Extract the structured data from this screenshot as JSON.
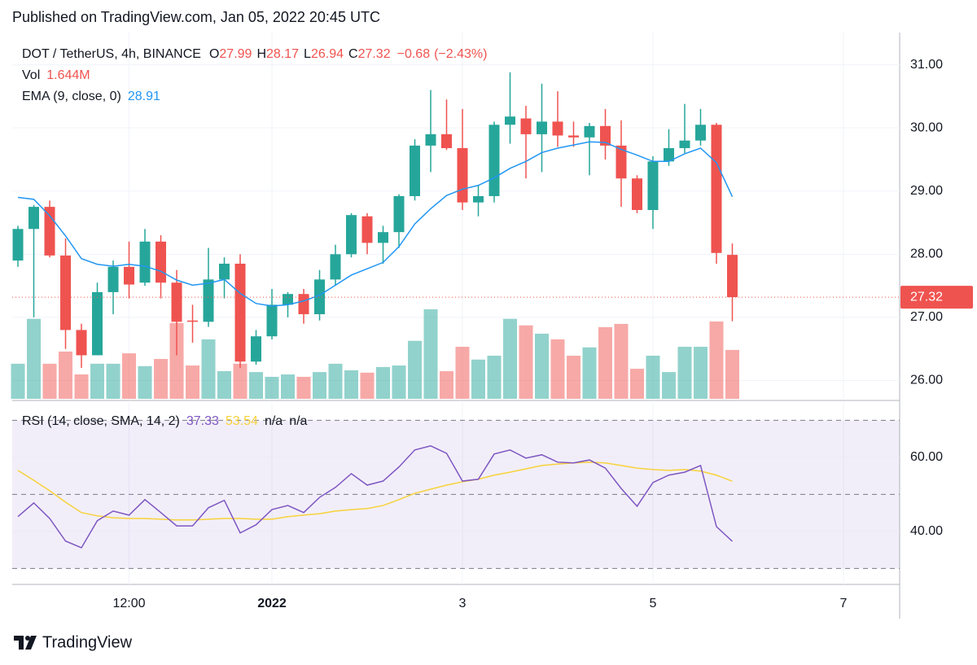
{
  "header": "Published on TradingView.com, Jan 05, 2022 20:45 UTC",
  "footer": "TradingView",
  "chart_data": [
    {
      "type": "candlestick",
      "title": "DOT / TetherUS, 4h, BINANCE",
      "ohlc_labels": [
        "O",
        "H",
        "L",
        "C"
      ],
      "change": {
        "value": -0.68,
        "label": "−0.68"
      },
      "change_pct": {
        "value": -2.43,
        "label": "(−2.43%)"
      },
      "open": [
        27.9,
        28.4,
        28.75,
        27.98,
        26.8,
        26.4,
        27.4,
        27.8,
        27.55,
        28.2,
        27.55,
        26.95,
        26.93,
        27.6,
        27.85,
        26.3,
        26.7,
        27.2,
        27.37,
        27.05,
        27.6,
        28.0,
        28.6,
        28.18,
        28.35,
        28.92,
        29.72,
        29.9,
        29.68,
        28.82,
        28.92,
        30.05,
        30.15,
        29.9,
        30.1,
        29.88,
        29.85,
        30.03,
        29.72,
        29.2,
        28.7,
        29.47,
        29.68,
        29.8,
        30.05,
        27.99
      ],
      "high": [
        28.45,
        28.78,
        28.85,
        28.25,
        26.9,
        27.55,
        27.9,
        28.2,
        28.4,
        28.3,
        27.75,
        27.2,
        28.1,
        27.95,
        28.0,
        26.8,
        27.45,
        27.4,
        27.45,
        27.75,
        28.15,
        28.65,
        28.65,
        28.45,
        28.95,
        29.82,
        30.6,
        30.45,
        30.3,
        29.1,
        30.1,
        30.88,
        30.35,
        30.7,
        30.58,
        30.1,
        30.08,
        30.3,
        30.12,
        29.25,
        29.55,
        29.98,
        30.38,
        30.3,
        30.08,
        28.17
      ],
      "low": [
        27.8,
        27.0,
        27.95,
        26.5,
        26.2,
        26.4,
        27.05,
        27.3,
        27.5,
        27.3,
        26.4,
        26.6,
        26.85,
        27.3,
        26.2,
        26.25,
        26.65,
        27.0,
        26.9,
        26.95,
        27.5,
        27.95,
        28.0,
        27.85,
        28.1,
        28.85,
        29.3,
        29.65,
        28.7,
        28.6,
        28.82,
        29.75,
        29.2,
        29.3,
        29.7,
        29.7,
        29.25,
        29.5,
        28.75,
        28.65,
        28.4,
        29.4,
        29.6,
        29.72,
        27.85,
        26.94
      ],
      "close": [
        28.4,
        28.75,
        27.98,
        26.8,
        26.4,
        27.4,
        27.8,
        27.52,
        28.2,
        27.55,
        26.93,
        26.93,
        27.6,
        27.85,
        26.3,
        26.7,
        27.2,
        27.37,
        27.05,
        27.6,
        28.0,
        28.62,
        28.18,
        28.35,
        28.92,
        29.72,
        29.9,
        29.68,
        28.82,
        28.92,
        30.05,
        30.18,
        29.9,
        30.1,
        29.88,
        29.85,
        30.03,
        29.72,
        29.2,
        28.7,
        29.47,
        29.68,
        29.8,
        30.05,
        28.02,
        27.32
      ],
      "up_color": "#26a69a",
      "down_color": "#ef5350",
      "volume": {
        "name": "Vol",
        "up_color": "rgba(38,166,154,0.5)",
        "down_color": "rgba(239,83,80,0.5)",
        "readout": {
          "value": 1.644,
          "label": "1.644M"
        },
        "values": [
          1.18,
          2.69,
          1.18,
          1.59,
          0.82,
          1.18,
          1.18,
          1.53,
          1.1,
          1.34,
          2.55,
          1.12,
          2.0,
          0.93,
          1.18,
          0.9,
          0.74,
          0.82,
          0.74,
          0.9,
          1.18,
          0.96,
          0.88,
          1.07,
          1.12,
          1.95,
          3.01,
          0.93,
          1.75,
          1.32,
          1.45,
          2.69,
          2.47,
          2.19,
          2.0,
          1.45,
          1.73,
          2.41,
          2.52,
          1.01,
          1.45,
          0.9,
          1.75,
          1.75,
          2.6,
          1.644
        ]
      },
      "ema": {
        "name": "EMA (9, close, 0)",
        "color": "#2196f3",
        "values": [
          28.9,
          28.87,
          28.61,
          28.29,
          27.93,
          27.84,
          27.81,
          27.84,
          27.81,
          27.73,
          27.59,
          27.51,
          27.54,
          27.6,
          27.38,
          27.22,
          27.18,
          27.2,
          27.26,
          27.35,
          27.51,
          27.67,
          27.77,
          27.87,
          28.12,
          28.48,
          28.72,
          28.93,
          29.03,
          29.09,
          29.21,
          29.36,
          29.47,
          29.61,
          29.68,
          29.73,
          29.78,
          29.77,
          29.66,
          29.57,
          29.47,
          29.47,
          29.59,
          29.68,
          29.45,
          28.91
        ]
      },
      "ylim": [
        25.71,
        31.51
      ],
      "yticks": [
        {
          "value": 31,
          "label": "31.00"
        },
        {
          "value": 30,
          "label": "30.00"
        },
        {
          "value": 29,
          "label": "29.00"
        },
        {
          "value": 28,
          "label": "28.00"
        },
        {
          "value": 27,
          "label": "27.00"
        },
        {
          "value": 26,
          "label": "26.00"
        }
      ],
      "xlim": [
        -0.36,
        55.54
      ],
      "xticks": [
        {
          "value": 7,
          "label": "12:00"
        },
        {
          "value": 16,
          "label": "2022",
          "bold": true
        },
        {
          "value": 28,
          "label": "3"
        },
        {
          "value": 40,
          "label": "5"
        },
        {
          "value": 52,
          "label": "7"
        }
      ],
      "grid": true
    },
    {
      "type": "line",
      "title": "RSI (14, close, SMA, 14, 2)",
      "extra_labels": [
        "n/a",
        "n/a"
      ],
      "series": [
        {
          "color": "#7e57c2",
          "values": [
            44,
            47.7,
            43.5,
            37.4,
            35.6,
            42.9,
            45.5,
            44.4,
            48.6,
            45.1,
            41.5,
            41.5,
            46.4,
            48.4,
            39.6,
            41.8,
            45.9,
            47,
            45.1,
            49.2,
            51.9,
            55.6,
            52.5,
            53.6,
            57.4,
            62,
            63.1,
            61.1,
            53.6,
            54.1,
            60.9,
            62,
            59.8,
            60.7,
            58.7,
            58.5,
            59.3,
            57.1,
            51.6,
            46.8,
            53.2,
            55.2,
            56,
            57.8,
            41.3,
            37.33
          ]
        },
        {
          "color": "#f7d23b",
          "values": [
            56.5,
            53.8,
            51,
            47.9,
            45.1,
            44.2,
            43.7,
            43.5,
            43.5,
            43.3,
            43.1,
            43.1,
            43.3,
            43.5,
            43.5,
            43.3,
            43.3,
            44,
            44.4,
            44.8,
            45.5,
            45.9,
            46.2,
            47,
            48.6,
            50.3,
            51.4,
            52.5,
            53.4,
            54.1,
            55.2,
            56,
            56.9,
            57.8,
            58.2,
            58.5,
            58.7,
            58.5,
            57.8,
            57.1,
            56.7,
            56.5,
            56.7,
            56.3,
            55.2,
            53.54
          ]
        }
      ],
      "bands": [
        70,
        50,
        30
      ],
      "band_color": "rgba(126,87,194,0.1)",
      "ylim": [
        25.7,
        74.7
      ],
      "yticks": [
        {
          "value": 60,
          "label": "60.00"
        },
        {
          "value": 40,
          "label": "40.00"
        }
      ],
      "grid": true
    }
  ]
}
